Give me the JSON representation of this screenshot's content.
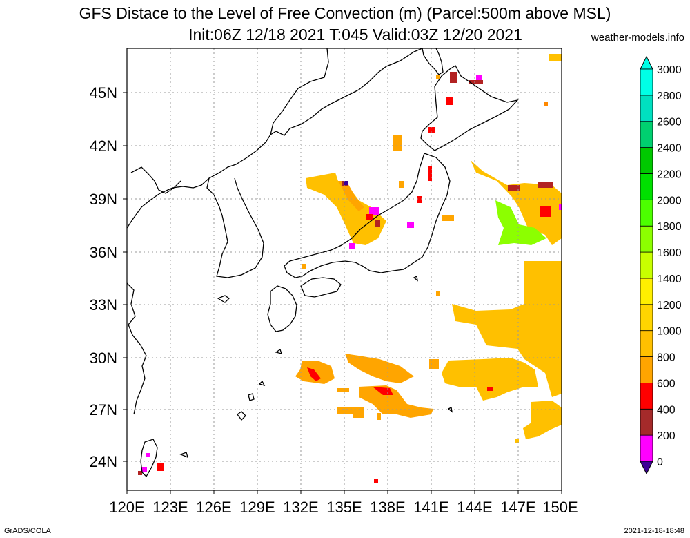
{
  "title": {
    "line1": "GFS Distace to the Level of Free Convection (m) (Parcel:500m above MSL)",
    "line2": "Init:06Z 12/18 2021 T:045 Valid:03Z 12/20 2021",
    "site": "weather-models.info"
  },
  "footer": {
    "left": "GrADS/COLA",
    "right": "2021-12-18-18:48"
  },
  "map": {
    "lon_range": [
      120,
      150
    ],
    "lat_range": [
      22.5,
      47.5
    ],
    "lon_ticks": [
      "120E",
      "123E",
      "126E",
      "129E",
      "132E",
      "135E",
      "138E",
      "141E",
      "144E",
      "147E",
      "150E"
    ],
    "lat_ticks": [
      "24N",
      "27N",
      "30N",
      "33N",
      "36N",
      "39N",
      "42N",
      "45N"
    ],
    "grid": true
  },
  "colorbar": {
    "labels": [
      "0",
      "200",
      "400",
      "600",
      "800",
      "1000",
      "1200",
      "1400",
      "1600",
      "1800",
      "2000",
      "2200",
      "2400",
      "2600",
      "2800",
      "3000"
    ],
    "colors": [
      "#3c0096",
      "#ff00ff",
      "#a52a2a",
      "#ff0000",
      "#ffa500",
      "#ffc000",
      "#ffd500",
      "#ffef00",
      "#c8ff00",
      "#8cff00",
      "#4cff00",
      "#00e000",
      "#00c800",
      "#00d070",
      "#00e0c0",
      "#00ffe6"
    ]
  }
}
